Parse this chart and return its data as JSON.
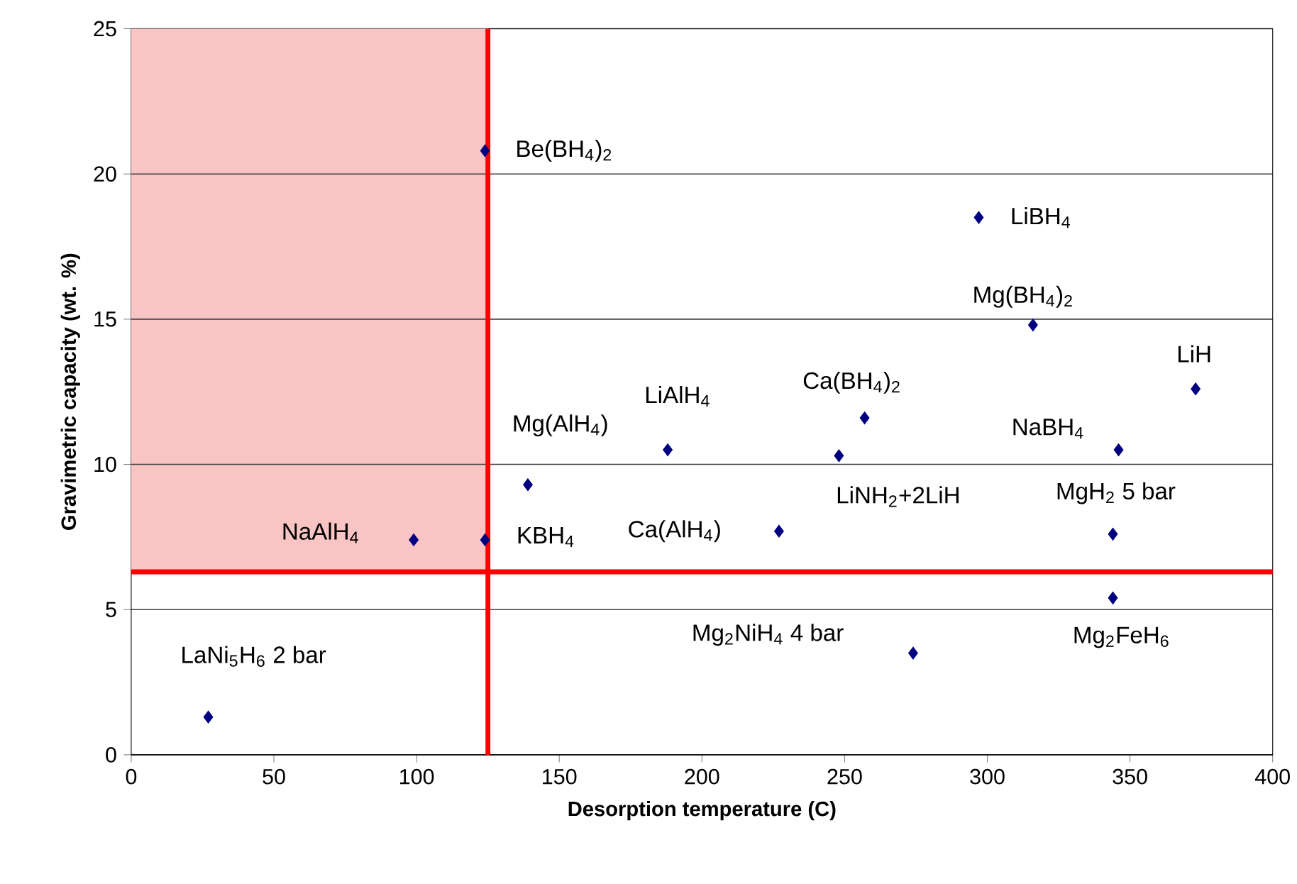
{
  "chart_data": {
    "type": "scatter",
    "xlabel": "Desorption temperature (C)",
    "ylabel": "Gravimetric capacity (wt. %)",
    "series": [
      {
        "color": "#000080",
        "x": [
          27,
          99,
          124,
          124,
          139,
          188,
          227,
          248,
          257,
          274,
          297,
          316,
          344,
          344,
          346,
          373
        ],
        "values": [
          1.3,
          7.4,
          7.4,
          20.8,
          9.3,
          10.5,
          7.7,
          10.3,
          11.6,
          3.5,
          18.5,
          14.8,
          7.6,
          5.4,
          10.5,
          12.6
        ]
      }
    ],
    "marker": "diamond",
    "grid": "y",
    "xlim": [
      0,
      400
    ],
    "xticks": [
      0,
      50,
      100,
      150,
      200,
      250,
      300,
      350,
      400
    ],
    "ylim": [
      0,
      25
    ],
    "yticks": [
      0,
      5,
      10,
      15,
      20,
      25
    ],
    "ref_lines": [
      {
        "axis": "x",
        "value": 125,
        "color": "#ff0000"
      },
      {
        "axis": "y",
        "value": 6.3,
        "color": "#ff0000"
      }
    ],
    "bands": [
      {
        "axis": "x",
        "from": 0,
        "to": 125,
        "color": "#f9c4c4"
      }
    ],
    "annotations": [
      {
        "text": "LaNi$_{5}$H$_{6}$ 2 bar",
        "x": 27,
        "y": 1.3
      },
      {
        "text": "NaAlH$_{4}$",
        "x": 99,
        "y": 7.4
      },
      {
        "text": "KBH$_{4}$",
        "x": 124,
        "y": 7.4
      },
      {
        "text": "Be(BH$_{4}$)$_{2}$",
        "x": 124,
        "y": 20.8
      },
      {
        "text": "Mg(AlH$_{4}$)",
        "x": 139,
        "y": 9.3
      },
      {
        "text": "LiAlH$_{4}$",
        "x": 188,
        "y": 10.5
      },
      {
        "text": "Ca(AlH$_{4}$)",
        "x": 227,
        "y": 7.7
      },
      {
        "text": "LiNH$_{2}$+2LiH",
        "x": 248,
        "y": 10.3
      },
      {
        "text": "Ca(BH$_{4}$)$_{2}$",
        "x": 257,
        "y": 11.6
      },
      {
        "text": "Mg$_{2}$NiH$_{4}$ 4 bar",
        "x": 274,
        "y": 3.5
      },
      {
        "text": "LiBH$_{4}$",
        "x": 297,
        "y": 18.5
      },
      {
        "text": "Mg(BH$_{4}$)$_{2}$",
        "x": 316,
        "y": 14.8
      },
      {
        "text": "MgH$_{2}$ 5 bar",
        "x": 344,
        "y": 7.6
      },
      {
        "text": "Mg$_{2}$FeH$_{6}$",
        "x": 344,
        "y": 5.4
      },
      {
        "text": "NaBH$_{4}$",
        "x": 346,
        "y": 10.5
      },
      {
        "text": "LiH",
        "x": 373,
        "y": 12.6
      }
    ]
  }
}
